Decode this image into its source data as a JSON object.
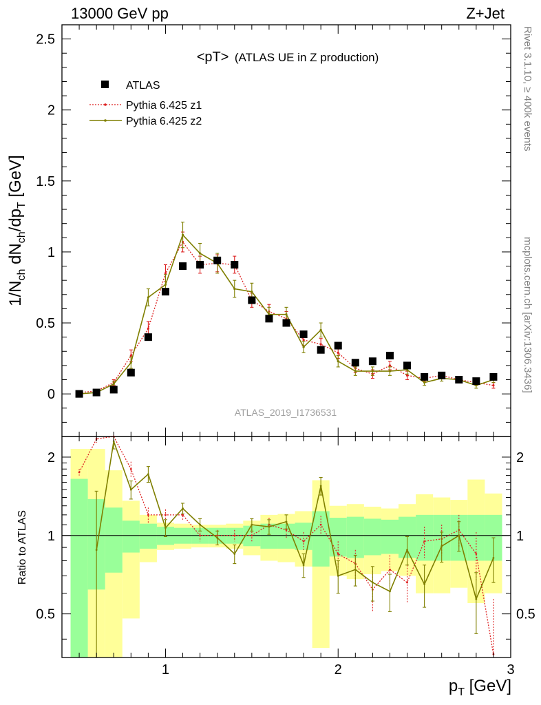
{
  "header": {
    "left": "13000 GeV pp",
    "right": "Z+Jet"
  },
  "chart_data": {
    "type": "line",
    "title_main": "<pT>",
    "title_sub": "(ATLAS UE in Z production)",
    "ylabel": {
      "base": "1/N",
      "sub1": "ch",
      "mid": " dN",
      "sub2": "ch",
      "mid2": "/dp",
      "sub3": "T",
      "unit": " [GeV]"
    },
    "ratio_ylabel": "Ratio to ATLAS",
    "xlabel": {
      "base": "p",
      "sub": "T",
      "unit": " [GeV]"
    },
    "xlim": [
      0.4,
      3.0
    ],
    "ylim": [
      -0.3,
      2.6
    ],
    "ratio_ylim": [
      0.34,
      2.4
    ],
    "x_ticks": [
      "1",
      "2",
      "3"
    ],
    "y_ticks": [
      "0",
      "0.5",
      "1",
      "1.5",
      "2",
      "2.5"
    ],
    "ratio_ticks": [
      "0.5",
      "1",
      "2"
    ],
    "watermark": "ATLAS_2019_I1736531",
    "side_text_top": "Rivet 3.1.10, ≥ 400k events",
    "side_text_bottom": "mcplots.cern.ch [arXiv:1306.3436]",
    "grid": false,
    "legend_position": "top-left",
    "colors": {
      "atlas": "#000000",
      "z1": "#dd2222",
      "z2": "#7f7f00",
      "band_inner": "#99ff99",
      "band_outer": "#ffff99"
    },
    "legend": [
      "ATLAS",
      "Pythia 6.425 z1",
      "Pythia 6.425 z2"
    ],
    "x": [
      0.5,
      0.6,
      0.7,
      0.8,
      0.9,
      1.0,
      1.1,
      1.2,
      1.3,
      1.4,
      1.5,
      1.6,
      1.7,
      1.8,
      1.9,
      2.0,
      2.1,
      2.2,
      2.3,
      2.4,
      2.5,
      2.6,
      2.7,
      2.8,
      2.9
    ],
    "series": [
      {
        "name": "ATLAS",
        "style": "markers",
        "values": [
          0.0,
          0.01,
          0.03,
          0.15,
          0.4,
          0.72,
          0.9,
          0.91,
          0.94,
          0.91,
          0.66,
          0.53,
          0.5,
          0.42,
          0.31,
          0.34,
          0.22,
          0.23,
          0.27,
          0.2,
          0.12,
          0.13,
          0.1,
          0.09,
          0.12
        ]
      },
      {
        "name": "Pythia 6.425 z1",
        "style": "dotted",
        "values": [
          0.01,
          0.02,
          0.08,
          0.27,
          0.46,
          0.85,
          1.07,
          0.91,
          0.92,
          0.91,
          0.66,
          0.58,
          0.53,
          0.38,
          0.35,
          0.29,
          0.18,
          0.14,
          0.2,
          0.13,
          0.11,
          0.13,
          0.1,
          0.08,
          0.06
        ],
        "errors": [
          0.01,
          0.01,
          0.02,
          0.04,
          0.05,
          0.06,
          0.07,
          0.06,
          0.06,
          0.06,
          0.05,
          0.05,
          0.05,
          0.04,
          0.04,
          0.04,
          0.03,
          0.03,
          0.03,
          0.03,
          0.02,
          0.02,
          0.02,
          0.02,
          0.02
        ]
      },
      {
        "name": "Pythia 6.425 z2",
        "style": "solid",
        "values": [
          0.0,
          0.01,
          0.07,
          0.22,
          0.68,
          0.77,
          1.12,
          0.99,
          0.92,
          0.74,
          0.72,
          0.56,
          0.56,
          0.33,
          0.45,
          0.23,
          0.16,
          0.16,
          0.16,
          0.17,
          0.08,
          0.11,
          0.1,
          0.06,
          0.1
        ],
        "errors": [
          0.01,
          0.01,
          0.02,
          0.04,
          0.06,
          0.07,
          0.09,
          0.07,
          0.07,
          0.06,
          0.06,
          0.05,
          0.05,
          0.04,
          0.05,
          0.04,
          0.03,
          0.03,
          0.03,
          0.03,
          0.02,
          0.02,
          0.02,
          0.02,
          0.02
        ]
      }
    ],
    "ratio": {
      "band_inner": [
        [
          0.34,
          1.65
        ],
        [
          0.62,
          1.38
        ],
        [
          0.72,
          1.28
        ],
        [
          0.86,
          1.14
        ],
        [
          0.89,
          1.11
        ],
        [
          0.92,
          1.08
        ],
        [
          0.93,
          1.07
        ],
        [
          0.93,
          1.07
        ],
        [
          0.93,
          1.07
        ],
        [
          0.93,
          1.07
        ],
        [
          0.91,
          1.09
        ],
        [
          0.89,
          1.11
        ],
        [
          0.89,
          1.11
        ],
        [
          0.88,
          1.12
        ],
        [
          0.76,
          1.24
        ],
        [
          0.83,
          1.17
        ],
        [
          0.82,
          1.18
        ],
        [
          0.84,
          1.16
        ],
        [
          0.85,
          1.15
        ],
        [
          0.82,
          1.18
        ],
        [
          0.8,
          1.2
        ],
        [
          0.8,
          1.2
        ],
        [
          0.8,
          1.2
        ],
        [
          0.8,
          1.2
        ],
        [
          0.8,
          1.2
        ]
      ],
      "band_outer": [
        [
          0.34,
          2.15
        ],
        [
          0.34,
          2.15
        ],
        [
          0.34,
          1.78
        ],
        [
          0.48,
          1.36
        ],
        [
          0.79,
          1.2
        ],
        [
          0.88,
          1.12
        ],
        [
          0.89,
          1.11
        ],
        [
          0.9,
          1.1
        ],
        [
          0.9,
          1.1
        ],
        [
          0.89,
          1.11
        ],
        [
          0.84,
          1.14
        ],
        [
          0.8,
          1.2
        ],
        [
          0.79,
          1.21
        ],
        [
          0.76,
          1.24
        ],
        [
          0.37,
          1.63
        ],
        [
          0.7,
          1.3
        ],
        [
          0.68,
          1.32
        ],
        [
          0.71,
          1.29
        ],
        [
          0.73,
          1.27
        ],
        [
          0.7,
          1.32
        ],
        [
          0.6,
          1.44
        ],
        [
          0.6,
          1.4
        ],
        [
          0.63,
          1.37
        ],
        [
          0.55,
          1.64
        ],
        [
          0.6,
          1.45
        ]
      ],
      "z1": [
        1.75,
        2.35,
        2.5,
        1.8,
        1.2,
        1.2,
        1.2,
        1.0,
        1.0,
        1.0,
        1.0,
        1.1,
        1.05,
        0.95,
        1.1,
        0.85,
        0.78,
        0.62,
        0.74,
        0.66,
        0.95,
        0.97,
        1.05,
        0.85,
        0.35
      ],
      "z1_err": [
        0.05,
        0.08,
        0.15,
        0.12,
        0.08,
        0.06,
        0.05,
        0.05,
        0.05,
        0.05,
        0.06,
        0.07,
        0.07,
        0.08,
        0.09,
        0.1,
        0.1,
        0.11,
        0.1,
        0.11,
        0.13,
        0.13,
        0.15,
        0.18,
        0.22
      ],
      "z2": [
        0.88,
        2.3,
        1.5,
        1.72,
        1.07,
        1.27,
        1.1,
        0.98,
        0.85,
        1.1,
        1.08,
        1.13,
        0.77,
        1.55,
        0.7,
        0.74,
        0.66,
        0.61,
        0.88,
        0.65,
        0.91,
        1.0,
        0.57,
        0.82
      ],
      "z2_x": [
        0.6,
        0.7,
        0.8,
        0.9,
        1.0,
        1.1,
        1.2,
        1.3,
        1.4,
        1.5,
        1.6,
        1.7,
        1.8,
        1.9,
        2.0,
        2.1,
        2.2,
        2.3,
        2.4,
        2.5,
        2.6,
        2.7,
        2.8,
        2.9
      ],
      "z2_err": [
        0.6,
        0.15,
        0.12,
        0.12,
        0.08,
        0.06,
        0.06,
        0.06,
        0.07,
        0.06,
        0.07,
        0.07,
        0.08,
        0.12,
        0.1,
        0.1,
        0.1,
        0.1,
        0.11,
        0.12,
        0.12,
        0.13,
        0.15,
        0.16
      ]
    }
  }
}
